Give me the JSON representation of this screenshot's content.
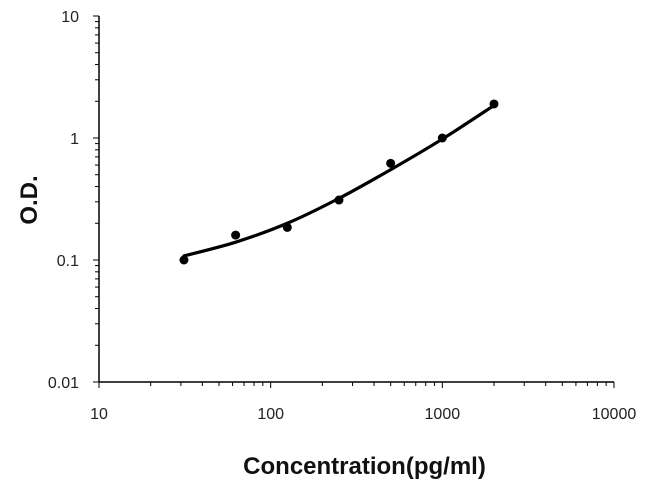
{
  "chart_data": {
    "type": "scatter",
    "title": "",
    "xlabel": "Concentration(pg/ml)",
    "ylabel": "O.D.",
    "xscale": "log",
    "yscale": "log",
    "xlim": [
      10,
      10000
    ],
    "ylim": [
      0.01,
      10
    ],
    "x_tick_labels": [
      "10",
      "100",
      "1000",
      "10000"
    ],
    "y_tick_labels": [
      "0.01",
      "0.1",
      "1",
      "10"
    ],
    "grid": false,
    "legend": "none",
    "series": [
      {
        "type": "scatter",
        "x": [
          31.25,
          62.5,
          125,
          250,
          500,
          1000,
          2000
        ],
        "y": [
          0.1,
          0.16,
          0.185,
          0.31,
          0.62,
          1.0,
          1.9
        ]
      },
      {
        "type": "line",
        "x": [
          31.25,
          62.5,
          125,
          250,
          500,
          1000,
          2000
        ],
        "y": [
          0.108,
          0.14,
          0.2,
          0.32,
          0.55,
          0.98,
          1.85
        ]
      }
    ],
    "colors": {
      "axis": "#000000",
      "marker": "#000000",
      "curve": "#000000"
    }
  }
}
